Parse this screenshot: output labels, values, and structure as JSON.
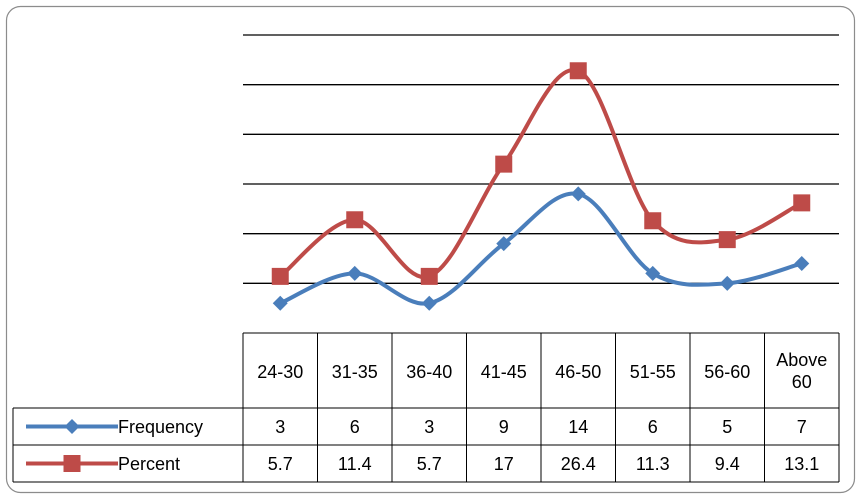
{
  "chart_data": {
    "type": "line",
    "title": "",
    "xlabel": "",
    "ylabel": "",
    "ylim": [
      0,
      30
    ],
    "grid": true,
    "legend": "table-left",
    "smooth": true,
    "categories": [
      "24-30",
      "31-35",
      "36-40",
      "41-45",
      "46-50",
      "51-55",
      "56-60",
      "Above 60"
    ],
    "category_lines": [
      [
        "24-30"
      ],
      [
        "31-35"
      ],
      [
        "36-40"
      ],
      [
        "41-45"
      ],
      [
        "46-50"
      ],
      [
        "51-55"
      ],
      [
        "56-60"
      ],
      [
        "Above",
        "60"
      ]
    ],
    "series": [
      {
        "name": "Frequency",
        "color": "#4a7ebb",
        "marker": "diamond",
        "values": [
          3,
          6,
          3,
          9,
          14,
          6,
          5,
          7
        ],
        "labels": [
          "3",
          "6",
          "3",
          "9",
          "14",
          "6",
          "5",
          "7"
        ]
      },
      {
        "name": "Percent",
        "color": "#be4b48",
        "marker": "square",
        "values": [
          5.7,
          11.4,
          5.7,
          17,
          26.4,
          11.3,
          9.4,
          13.1
        ],
        "labels": [
          "5.7",
          "11.4",
          "5.7",
          "17",
          "26.4",
          "11.3",
          "9.4",
          "13.1"
        ]
      }
    ]
  }
}
